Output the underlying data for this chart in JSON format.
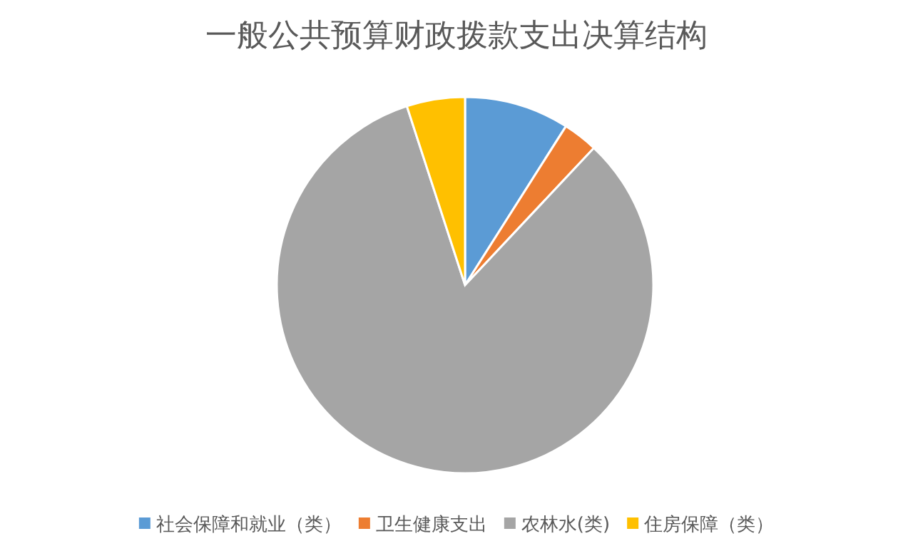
{
  "chart_data": {
    "type": "pie",
    "title": "一般公共预算财政拨款支出决算结构",
    "categories": [
      "社会保障和就业（类）",
      "卫生健康支出",
      "农林水(类)",
      "住房保障（类）"
    ],
    "values": [
      9,
      3,
      83,
      5
    ],
    "colors": [
      "#5b9bd5",
      "#ed7d31",
      "#a5a5a5",
      "#ffc000"
    ],
    "legend": "bottom"
  }
}
